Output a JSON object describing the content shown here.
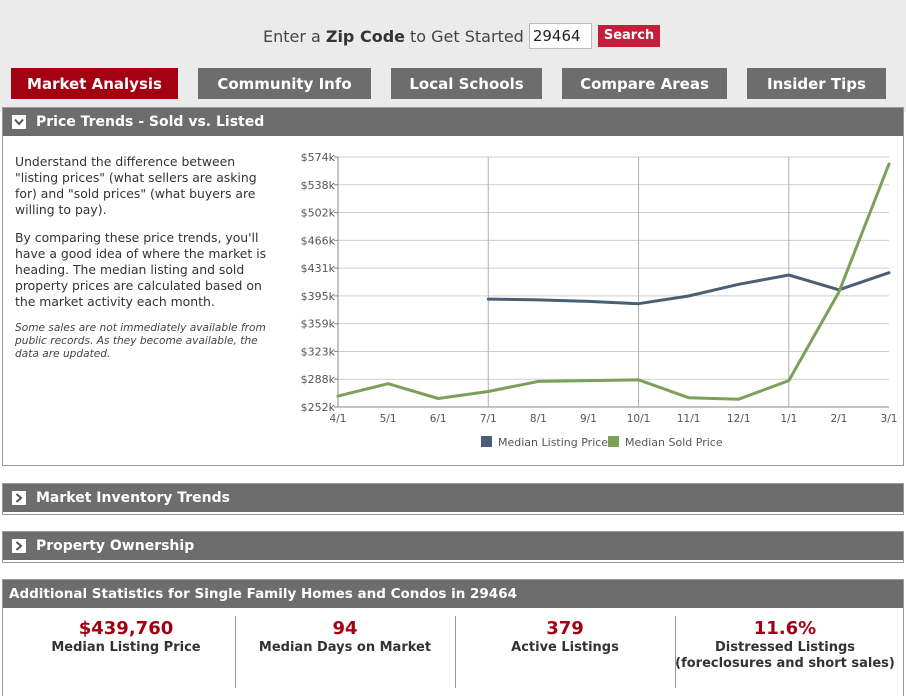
{
  "header": {
    "prompt_pre": "Enter a",
    "prompt_bold": "Zip Code",
    "prompt_post": "to Get Started",
    "zip_value": "29464",
    "search_label": "Search"
  },
  "tabs": [
    {
      "label": "Market Analysis",
      "active": true
    },
    {
      "label": "Community Info",
      "active": false
    },
    {
      "label": "Local Schools",
      "active": false
    },
    {
      "label": "Compare Areas",
      "active": false
    },
    {
      "label": "Insider Tips",
      "active": false
    }
  ],
  "price_trends": {
    "title": "Price Trends - Sold vs. Listed",
    "para1": "Understand the difference between \"listing prices\" (what sellers are asking for) and \"sold prices\" (what buyers are willing to pay).",
    "para2": "By comparing these price trends, you'll have a good idea of where the market is heading. The median listing and sold property prices are calculated based on the market activity each month.",
    "note": "Some sales are not immediately available from public records. As they become available, the data are updated."
  },
  "chart_data": {
    "type": "line",
    "categories": [
      "4/1",
      "5/1",
      "6/1",
      "7/1",
      "8/1",
      "9/1",
      "10/1",
      "11/1",
      "12/1",
      "1/1",
      "2/1",
      "3/1"
    ],
    "y_ticks": [
      "$252k",
      "$288k",
      "$323k",
      "$359k",
      "$395k",
      "$431k",
      "$466k",
      "$502k",
      "$538k",
      "$574k"
    ],
    "ylim": [
      252,
      574
    ],
    "series": [
      {
        "name": "Median Listing Price",
        "color": "#4a5f75",
        "values": [
          null,
          null,
          null,
          391,
          390,
          388,
          385,
          395,
          410,
          422,
          403,
          425
        ]
      },
      {
        "name": "Median Sold Price",
        "color": "#7aa05a",
        "values": [
          266,
          282,
          263,
          272,
          285,
          286,
          287,
          264,
          262,
          286,
          400,
          565
        ]
      }
    ]
  },
  "inventory": {
    "title": "Market Inventory Trends"
  },
  "ownership": {
    "title": "Property Ownership"
  },
  "stats": {
    "title": "Additional Statistics for Single Family Homes and Condos in 29464",
    "items": [
      {
        "value": "$439,760",
        "label": "Median Listing Price"
      },
      {
        "value": "94",
        "label": "Median Days on Market"
      },
      {
        "value": "379",
        "label": "Active Listings"
      },
      {
        "value": "11.6%",
        "label": "Distressed Listings (foreclosures and short sales)"
      }
    ]
  }
}
